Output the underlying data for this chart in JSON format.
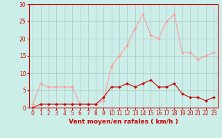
{
  "title": "",
  "xlabel": "Vent moyen/en rafales ( km/h )",
  "ylabel": "",
  "bg_color": "#cceee8",
  "grid_color": "#b0cccc",
  "x_values": [
    0,
    1,
    2,
    3,
    4,
    5,
    6,
    7,
    8,
    9,
    10,
    11,
    12,
    13,
    14,
    15,
    16,
    17,
    18,
    19,
    20,
    21,
    22,
    23
  ],
  "wind_mean": [
    0,
    1,
    1,
    1,
    1,
    1,
    1,
    1,
    1,
    3,
    6,
    6,
    7,
    6,
    7,
    8,
    6,
    6,
    7,
    4,
    3,
    3,
    2,
    3
  ],
  "wind_gust": [
    1,
    7,
    6,
    6,
    6,
    6,
    1,
    1,
    1,
    2,
    12,
    15,
    18,
    23,
    27,
    21,
    20,
    25,
    27,
    16,
    16,
    14,
    15,
    16
  ],
  "mean_color": "#cc0000",
  "gust_color": "#ff9999",
  "ylim": [
    0,
    30
  ],
  "xlim": [
    -0.5,
    23.5
  ],
  "yticks": [
    0,
    5,
    10,
    15,
    20,
    25,
    30
  ],
  "xticks": [
    0,
    1,
    2,
    3,
    4,
    5,
    6,
    7,
    8,
    9,
    10,
    11,
    12,
    13,
    14,
    15,
    16,
    17,
    18,
    19,
    20,
    21,
    22,
    23
  ],
  "marker": "D",
  "marker_size": 2.0,
  "line_width": 0.8,
  "tick_fontsize": 5.5,
  "xlabel_fontsize": 6.5
}
